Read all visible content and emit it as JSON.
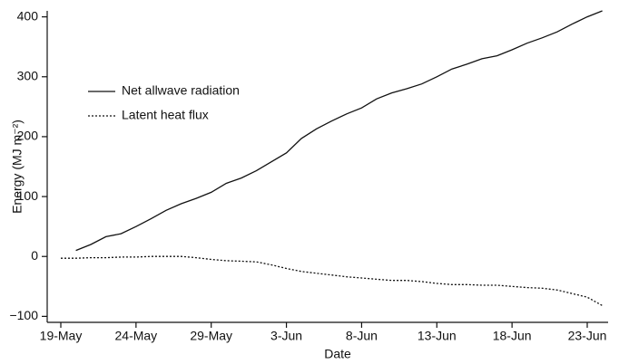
{
  "chart_data": {
    "type": "line",
    "x_label": "Date",
    "y_label": "Energy (MJ m⁻²)",
    "categories": [
      "19-May",
      null,
      null,
      null,
      null,
      "24-May",
      null,
      null,
      null,
      null,
      "29-May",
      null,
      null,
      null,
      null,
      "3-Jun",
      null,
      null,
      null,
      null,
      "8-Jun",
      null,
      null,
      null,
      null,
      "13-Jun",
      null,
      null,
      null,
      null,
      "18-Jun",
      null,
      null,
      null,
      null,
      "23-Jun",
      null
    ],
    "series": [
      {
        "name": "Net allwave radiation",
        "color": "#111111",
        "dash": "solid",
        "values": [
          null,
          10,
          20,
          33,
          38,
          50,
          63,
          77,
          88,
          97,
          107,
          122,
          131,
          143,
          158,
          173,
          197,
          213,
          226,
          238,
          248,
          263,
          273,
          280,
          288,
          300,
          313,
          321,
          330,
          335,
          345,
          356,
          365,
          375,
          388,
          400,
          410
        ]
      },
      {
        "name": "Latent heat flux",
        "color": "#111111",
        "dash": "dotted",
        "values": [
          -3,
          -3,
          -2,
          -2,
          -1,
          -1,
          0,
          0,
          0,
          -2,
          -5,
          -7,
          -8,
          -9,
          -14,
          -20,
          -25,
          -28,
          -31,
          -34,
          -36,
          -38,
          -40,
          -40,
          -42,
          -45,
          -47,
          -47,
          -48,
          -48,
          -50,
          -52,
          -53,
          -56,
          -62,
          -68,
          -82
        ]
      }
    ],
    "ylim": [
      -110,
      410
    ],
    "yticks": [
      {
        "value": -100,
        "label": "−100"
      },
      0,
      100,
      200,
      300,
      400
    ],
    "grid": false,
    "legend": "top-left"
  }
}
